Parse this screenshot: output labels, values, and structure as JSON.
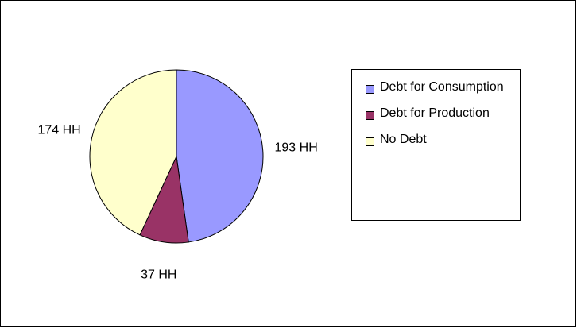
{
  "chart_data": {
    "type": "pie",
    "categories": [
      "Debt for Consumption",
      "Debt for Production",
      "No Debt"
    ],
    "values": [
      193,
      37,
      174
    ],
    "value_labels": [
      "193 HH",
      "37 HH",
      "174 HH"
    ],
    "colors": [
      "#9999ff",
      "#993366",
      "#ffffcc"
    ],
    "legend": "right"
  }
}
